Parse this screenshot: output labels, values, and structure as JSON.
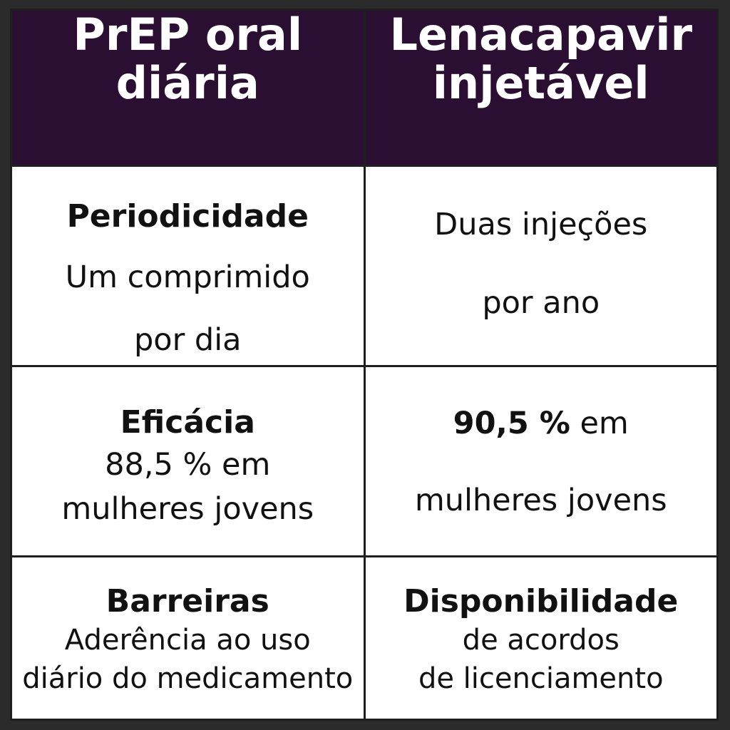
{
  "header": {
    "col1": [
      "PrEP oral",
      "diária"
    ],
    "col2": [
      "Lenacapavir",
      "injetável"
    ]
  },
  "rows": [
    {
      "col1": {
        "label": "Periodicidade",
        "lines": [
          "Um comprimido",
          "por dia"
        ]
      },
      "col2": {
        "lines": [
          "Duas injeções",
          "por ano"
        ]
      }
    },
    {
      "col1": {
        "label": "Eficácia",
        "lines": [
          "88,5 % em",
          "mulheres jovens"
        ]
      },
      "col2": {
        "value_bold": "90,5 %",
        "value_rest": " em",
        "lines": [
          "mulheres jovens"
        ]
      }
    },
    {
      "col1": {
        "label": "Barreiras",
        "lines": [
          "Aderência ao uso",
          "diário do medicamento"
        ]
      },
      "col2": {
        "label": "Disponibilidade",
        "lines": [
          "de acordos",
          "de licenciamento"
        ]
      }
    }
  ]
}
